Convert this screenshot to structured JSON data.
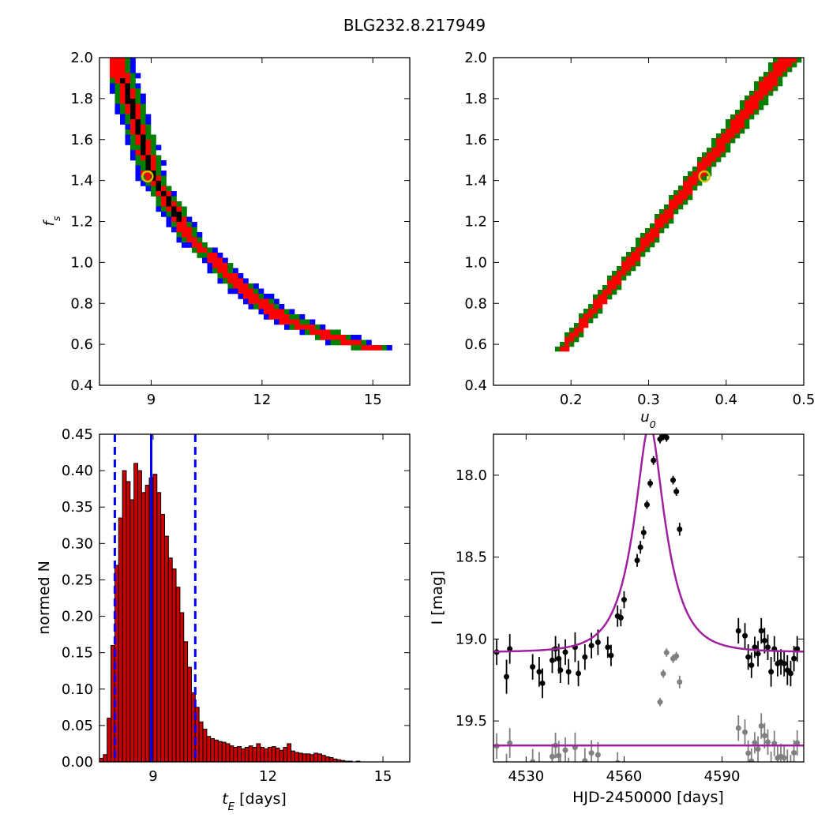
{
  "figure": {
    "title": "BLG232.8.217949"
  },
  "chart_data": [
    {
      "id": "tE_vs_fs",
      "type": "heatmap",
      "xlabel": "",
      "ylabel": "f_s",
      "xlim": [
        7.6,
        16.0
      ],
      "ylim": [
        0.4,
        2.0
      ],
      "xticks": [
        9,
        12,
        15
      ],
      "yticks": [
        0.4,
        0.6,
        0.8,
        1.0,
        1.2,
        1.4,
        1.6,
        1.8,
        2.0
      ],
      "confidence_levels": [
        {
          "level": "3-sigma",
          "color": "#0000ff"
        },
        {
          "level": "2-sigma",
          "color": "#008000"
        },
        {
          "level": "1-sigma",
          "color": "#ff0000"
        },
        {
          "level": "best",
          "color": "#000000"
        }
      ],
      "ridge": {
        "x": [
          8.0,
          8.5,
          9.0,
          9.5,
          10.0,
          10.5,
          11.0,
          11.5,
          12.0,
          12.5,
          13.0,
          13.5,
          14.0,
          14.5,
          15.0
        ],
        "y": [
          2.0,
          1.72,
          1.42,
          1.28,
          1.13,
          1.05,
          0.95,
          0.87,
          0.8,
          0.74,
          0.7,
          0.67,
          0.64,
          0.61,
          0.59
        ],
        "half_width": [
          0.45,
          0.42,
          0.4,
          0.38,
          0.36,
          0.36,
          0.38,
          0.42,
          0.5,
          0.55,
          0.6,
          0.62,
          0.65,
          0.65,
          0.6
        ]
      },
      "best_fit": {
        "x": 8.9,
        "y": 1.42,
        "marker_color": "#c8c800"
      }
    },
    {
      "id": "u0_vs_fs",
      "type": "heatmap",
      "xlabel": "u_0",
      "ylabel": "",
      "xlim": [
        0.1,
        0.5
      ],
      "ylim": [
        0.4,
        2.0
      ],
      "xticks": [
        0.2,
        0.3,
        0.4,
        0.5
      ],
      "yticks": [
        0.4,
        0.6,
        0.8,
        1.0,
        1.2,
        1.4,
        1.6,
        1.8,
        2.0
      ],
      "confidence_levels": [
        {
          "level": "2-sigma",
          "color": "#008000"
        },
        {
          "level": "1-sigma",
          "color": "#ff0000"
        },
        {
          "level": "best",
          "color": "#000000"
        }
      ],
      "ridge": {
        "x": [
          0.185,
          0.475
        ],
        "y": [
          0.58,
          2.0
        ],
        "half_width": 0.012
      },
      "best_fit": {
        "x": 0.372,
        "y": 1.42,
        "marker_color": "#c8c800"
      }
    },
    {
      "id": "tE_histogram",
      "type": "bar",
      "xlabel": "t_E [days]",
      "ylabel": "normed N",
      "xlim": [
        7.6,
        15.7
      ],
      "ylim": [
        0.0,
        0.45
      ],
      "xticks": [
        9,
        12,
        15
      ],
      "yticks": [
        0.0,
        0.05,
        0.1,
        0.15,
        0.2,
        0.25,
        0.3,
        0.35,
        0.4,
        0.45
      ],
      "bin_start": 7.6,
      "bin_width": 0.1,
      "values": [
        0.005,
        0.01,
        0.06,
        0.16,
        0.27,
        0.335,
        0.4,
        0.385,
        0.36,
        0.41,
        0.4,
        0.37,
        0.38,
        0.39,
        0.395,
        0.37,
        0.34,
        0.31,
        0.28,
        0.265,
        0.24,
        0.205,
        0.165,
        0.13,
        0.095,
        0.075,
        0.055,
        0.045,
        0.035,
        0.032,
        0.03,
        0.028,
        0.027,
        0.025,
        0.022,
        0.02,
        0.021,
        0.018,
        0.02,
        0.022,
        0.02,
        0.025,
        0.02,
        0.018,
        0.02,
        0.021,
        0.019,
        0.016,
        0.02,
        0.025,
        0.015,
        0.013,
        0.012,
        0.011,
        0.011,
        0.01,
        0.012,
        0.011,
        0.009,
        0.007,
        0.006,
        0.004,
        0.003,
        0.002,
        0.001,
        0.001,
        0.0,
        0.001,
        0.0,
        0.0,
        0.0,
        0.0,
        0.0,
        0.0,
        0.0,
        0.0,
        0.0,
        0.0,
        0.0,
        0.0,
        0.0
      ],
      "bar_color": "#cc0000",
      "median_line": {
        "x": 8.95,
        "color": "#0000ff"
      },
      "interval_lines": [
        8.0,
        10.1
      ]
    },
    {
      "id": "lightcurve",
      "type": "scatter",
      "xlabel": "HJD-2450000 [days]",
      "ylabel": "I [mag]",
      "xlim": [
        4520,
        4615
      ],
      "ylim": [
        19.75,
        17.75
      ],
      "xticks": [
        4530,
        4560,
        4590
      ],
      "yticks": [
        18.0,
        18.5,
        19.0,
        19.5
      ],
      "model": {
        "t0": 4567.8,
        "tE": 8.9,
        "u0": 0.372,
        "fs": 1.42,
        "baseline": 19.08,
        "color": "#a020a0"
      },
      "residual_offset": 19.65,
      "series": [
        {
          "name": "",
          "color": "#000000",
          "t": [
            4521,
            4524,
            4525,
            4532,
            4534,
            4535,
            4538,
            4539,
            4540,
            4540.5,
            4542,
            4543,
            4545,
            4546,
            4548,
            4550,
            4552,
            4555,
            4556,
            4558,
            4559,
            4560,
            4564,
            4565,
            4566,
            4567,
            4568,
            4569,
            4571,
            4572,
            4573,
            4575,
            4576,
            4577,
            4595,
            4597,
            4598,
            4599,
            4600,
            4601,
            4602,
            4603,
            4604,
            4605,
            4606,
            4607,
            4608,
            4609,
            4610,
            4611,
            4612,
            4613,
            4618,
            4622
          ],
          "mag": [
            19.08,
            19.23,
            19.06,
            19.17,
            19.2,
            19.27,
            19.13,
            19.06,
            19.12,
            19.19,
            19.08,
            19.2,
            19.05,
            19.21,
            19.11,
            19.04,
            19.02,
            19.05,
            19.1,
            18.86,
            18.87,
            18.76,
            18.52,
            18.44,
            18.35,
            18.18,
            18.05,
            17.91,
            17.78,
            17.76,
            17.77,
            18.03,
            18.1,
            18.33,
            18.95,
            18.98,
            19.11,
            19.16,
            19.05,
            19.09,
            18.95,
            19.01,
            19.05,
            19.2,
            19.06,
            19.15,
            19.14,
            19.15,
            19.19,
            19.21,
            19.12,
            19.06,
            19.11,
            19.17
          ],
          "err": [
            0.06,
            0.08,
            0.07,
            0.06,
            0.07,
            0.07,
            0.06,
            0.06,
            0.07,
            0.06,
            0.06,
            0.06,
            0.07,
            0.06,
            0.06,
            0.06,
            0.06,
            0.05,
            0.05,
            0.05,
            0.04,
            0.04,
            0.03,
            0.03,
            0.03,
            0.02,
            0.02,
            0.02,
            0.02,
            0.02,
            0.02,
            0.02,
            0.02,
            0.03,
            0.06,
            0.06,
            0.06,
            0.06,
            0.05,
            0.06,
            0.06,
            0.06,
            0.06,
            0.07,
            0.06,
            0.06,
            0.06,
            0.06,
            0.07,
            0.06,
            0.06,
            0.06,
            0.06,
            0.06
          ]
        }
      ]
    }
  ]
}
